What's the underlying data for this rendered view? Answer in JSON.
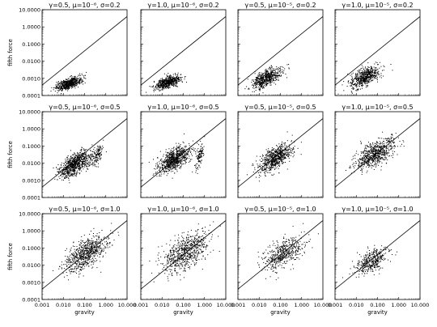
{
  "figure": {
    "x_axis_label": "gravity",
    "y_axis_label": "fifth force",
    "scale": "log-log",
    "grid": false,
    "line_color": "#000000",
    "point_color": "#000000"
  },
  "chart_data": [
    {
      "type": "scatter",
      "title": "γ=0.5, μ=10⁻⁶, σ=0.2",
      "xlabel": "gravity",
      "ylabel": "fifth force",
      "xscale": "log",
      "yscale": "log",
      "xlim": [
        0.001,
        10
      ],
      "ylim": [
        0.0001,
        10
      ],
      "xticks": [
        "0.001",
        "0.010",
        "0.100",
        "1.000",
        "10.000"
      ],
      "yticks": [
        "0.0001",
        "0.0010",
        "0.0100",
        "0.1000",
        "1.0000",
        "10.0000"
      ],
      "reference_line": {
        "x": [
          0.001,
          10
        ],
        "y": [
          0.0004,
          4
        ]
      },
      "point_clouds": [
        {
          "x_range": [
            0.003,
            0.1
          ],
          "y_range": [
            0.00018,
            0.0015
          ],
          "n": 600
        }
      ]
    },
    {
      "type": "scatter",
      "title": "γ=1.0, μ=10⁻⁶, σ=0.2",
      "xlabel": "gravity",
      "ylabel": "fifth force",
      "xscale": "log",
      "yscale": "log",
      "xlim": [
        0.001,
        10
      ],
      "ylim": [
        0.0001,
        10
      ],
      "xticks": [
        "0.001",
        "0.010",
        "0.100",
        "1.000",
        "10.000"
      ],
      "yticks": [
        "0.0001",
        "0.0010",
        "0.0100",
        "0.1000",
        "1.0000",
        "10.0000"
      ],
      "reference_line": {
        "x": [
          0.001,
          10
        ],
        "y": [
          0.0004,
          4
        ]
      },
      "point_clouds": [
        {
          "x_range": [
            0.003,
            0.1
          ],
          "y_range": [
            0.0002,
            0.0018
          ],
          "n": 600
        }
      ]
    },
    {
      "type": "scatter",
      "title": "γ=0.5, μ=10⁻⁵, σ=0.2",
      "xlabel": "gravity",
      "ylabel": "fifth force",
      "xscale": "log",
      "yscale": "log",
      "xlim": [
        0.001,
        10
      ],
      "ylim": [
        0.0001,
        10
      ],
      "xticks": [
        "0.001",
        "0.010",
        "0.100",
        "1.000",
        "10.000"
      ],
      "yticks": [
        "0.0001",
        "0.0010",
        "0.0100",
        "0.1000",
        "1.0000",
        "10.0000"
      ],
      "reference_line": {
        "x": [
          0.001,
          10
        ],
        "y": [
          0.0004,
          4
        ]
      },
      "point_clouds": [
        {
          "x_range": [
            0.003,
            0.15
          ],
          "y_range": [
            0.0002,
            0.006
          ],
          "n": 600
        }
      ]
    },
    {
      "type": "scatter",
      "title": "γ=1.0, μ=10⁻⁵, σ=0.2",
      "xlabel": "gravity",
      "ylabel": "fifth force",
      "xscale": "log",
      "yscale": "log",
      "xlim": [
        0.001,
        10
      ],
      "ylim": [
        0.0001,
        10
      ],
      "xticks": [
        "0.001",
        "0.010",
        "0.100",
        "1.000",
        "10.000"
      ],
      "yticks": [
        "0.0001",
        "0.0010",
        "0.0100",
        "0.1000",
        "1.0000",
        "10.0000"
      ],
      "reference_line": {
        "x": [
          0.001,
          10
        ],
        "y": [
          0.0004,
          4
        ]
      },
      "point_clouds": [
        {
          "x_range": [
            0.003,
            0.2
          ],
          "y_range": [
            0.0002,
            0.008
          ],
          "n": 600
        }
      ]
    },
    {
      "type": "scatter",
      "title": "γ=0.5, μ=10⁻⁶, σ=0.5",
      "xlabel": "gravity",
      "ylabel": "fifth force",
      "xscale": "log",
      "yscale": "log",
      "xlim": [
        0.001,
        10
      ],
      "ylim": [
        0.0001,
        10
      ],
      "xticks": [
        "0.001",
        "0.010",
        "0.100",
        "1.000",
        "10.000"
      ],
      "yticks": [
        "0.0001",
        "0.0010",
        "0.0100",
        "0.1000",
        "1.0000",
        "10.0000"
      ],
      "reference_line": {
        "x": [
          0.001,
          10
        ],
        "y": [
          0.0004,
          4
        ]
      },
      "point_clouds": [
        {
          "x_range": [
            0.004,
            0.3
          ],
          "y_range": [
            0.001,
            0.08
          ],
          "n": 800
        },
        {
          "x_range": [
            0.2,
            0.8
          ],
          "y_range": [
            0.005,
            0.2
          ],
          "n": 120
        }
      ]
    },
    {
      "type": "scatter",
      "title": "γ=1.0, μ=10⁻⁶, σ=0.5",
      "xlabel": "gravity",
      "ylabel": "fifth force",
      "xscale": "log",
      "yscale": "log",
      "xlim": [
        0.001,
        10
      ],
      "ylim": [
        0.0001,
        10
      ],
      "xticks": [
        "0.001",
        "0.010",
        "0.100",
        "1.000",
        "10.000"
      ],
      "yticks": [
        "0.0001",
        "0.0010",
        "0.0100",
        "0.1000",
        "1.0000",
        "10.0000"
      ],
      "reference_line": {
        "x": [
          0.001,
          10
        ],
        "y": [
          0.0004,
          4
        ]
      },
      "point_clouds": [
        {
          "x_range": [
            0.004,
            0.3
          ],
          "y_range": [
            0.002,
            0.15
          ],
          "n": 800
        },
        {
          "x_range": [
            0.3,
            1.0
          ],
          "y_range": [
            0.003,
            0.2
          ],
          "n": 120
        }
      ]
    },
    {
      "type": "scatter",
      "title": "γ=0.5, μ=10⁻⁵, σ=0.5",
      "xlabel": "gravity",
      "ylabel": "fifth force",
      "xscale": "log",
      "yscale": "log",
      "xlim": [
        0.001,
        10
      ],
      "ylim": [
        0.0001,
        10
      ],
      "xticks": [
        "0.001",
        "0.010",
        "0.100",
        "1.000",
        "10.000"
      ],
      "yticks": [
        "0.0001",
        "0.0010",
        "0.0100",
        "0.1000",
        "1.0000",
        "10.0000"
      ],
      "reference_line": {
        "x": [
          0.001,
          10
        ],
        "y": [
          0.0004,
          4
        ]
      },
      "point_clouds": [
        {
          "x_range": [
            0.006,
            0.5
          ],
          "y_range": [
            0.002,
            0.2
          ],
          "n": 700
        }
      ]
    },
    {
      "type": "scatter",
      "title": "γ=1.0, μ=10⁻⁵, σ=0.5",
      "xlabel": "gravity",
      "ylabel": "fifth force",
      "xscale": "log",
      "yscale": "log",
      "xlim": [
        0.001,
        10
      ],
      "ylim": [
        0.0001,
        10
      ],
      "xticks": [
        "0.001",
        "0.010",
        "0.100",
        "1.000",
        "10.000"
      ],
      "yticks": [
        "0.0001",
        "0.0010",
        "0.0100",
        "0.1000",
        "1.0000",
        "10.0000"
      ],
      "reference_line": {
        "x": [
          0.001,
          10
        ],
        "y": [
          0.0004,
          4
        ]
      },
      "point_clouds": [
        {
          "x_range": [
            0.006,
            1.0
          ],
          "y_range": [
            0.003,
            0.5
          ],
          "n": 700
        }
      ]
    },
    {
      "type": "scatter",
      "title": "γ=0.5, μ=10⁻⁶, σ=1.0",
      "xlabel": "gravity",
      "ylabel": "fifth force",
      "xscale": "log",
      "yscale": "log",
      "xlim": [
        0.001,
        10
      ],
      "ylim": [
        0.0001,
        10
      ],
      "xticks": [
        "0.001",
        "0.010",
        "0.100",
        "1.000",
        "10.000"
      ],
      "yticks": [
        "0.0001",
        "0.0010",
        "0.0100",
        "0.1000",
        "1.0000",
        "10.0000"
      ],
      "reference_line": {
        "x": [
          0.001,
          10
        ],
        "y": [
          0.0004,
          4
        ]
      },
      "point_clouds": [
        {
          "x_range": [
            0.006,
            2.0
          ],
          "y_range": [
            0.002,
            1.0
          ],
          "n": 700
        }
      ]
    },
    {
      "type": "scatter",
      "title": "γ=1.0, μ=10⁻⁶, σ=1.0",
      "xlabel": "gravity",
      "ylabel": "fifth force",
      "xscale": "log",
      "yscale": "log",
      "xlim": [
        0.001,
        10
      ],
      "ylim": [
        0.0001,
        10
      ],
      "xticks": [
        "0.001",
        "0.010",
        "0.100",
        "1.000",
        "10.000"
      ],
      "yticks": [
        "0.0001",
        "0.0010",
        "0.0100",
        "0.1000",
        "1.0000",
        "10.0000"
      ],
      "reference_line": {
        "x": [
          0.001,
          10
        ],
        "y": [
          0.0004,
          4
        ]
      },
      "point_clouds": [
        {
          "x_range": [
            0.006,
            3.0
          ],
          "y_range": [
            0.002,
            2.0
          ],
          "n": 700
        }
      ]
    },
    {
      "type": "scatter",
      "title": "γ=0.5, μ=10⁻⁵, σ=1.0",
      "xlabel": "gravity",
      "ylabel": "fifth force",
      "xscale": "log",
      "yscale": "log",
      "xlim": [
        0.001,
        10
      ],
      "ylim": [
        0.0001,
        10
      ],
      "xticks": [
        "0.001",
        "0.010",
        "0.100",
        "1.000",
        "10.000"
      ],
      "yticks": [
        "0.0001",
        "0.0010",
        "0.0100",
        "0.1000",
        "1.0000",
        "10.0000"
      ],
      "reference_line": {
        "x": [
          0.001,
          10
        ],
        "y": [
          0.0004,
          4
        ]
      },
      "point_clouds": [
        {
          "x_range": [
            0.008,
            2.0
          ],
          "y_range": [
            0.003,
            0.8
          ],
          "n": 500
        }
      ]
    },
    {
      "type": "scatter",
      "title": "γ=1.0, μ=10⁻⁵, σ=1.0",
      "xlabel": "gravity",
      "ylabel": "fifth force",
      "xscale": "log",
      "yscale": "log",
      "xlim": [
        0.001,
        10
      ],
      "ylim": [
        0.0001,
        10
      ],
      "xticks": [
        "0.001",
        "0.010",
        "0.100",
        "1.000",
        "10.000"
      ],
      "yticks": [
        "0.0001",
        "0.0010",
        "0.0100",
        "0.1000",
        "1.0000",
        "10.0000"
      ],
      "reference_line": {
        "x": [
          0.001,
          10
        ],
        "y": [
          0.0004,
          4
        ]
      },
      "point_clouds": [
        {
          "x_range": [
            0.006,
            0.5
          ],
          "y_range": [
            0.002,
            0.2
          ],
          "n": 400
        }
      ]
    }
  ]
}
